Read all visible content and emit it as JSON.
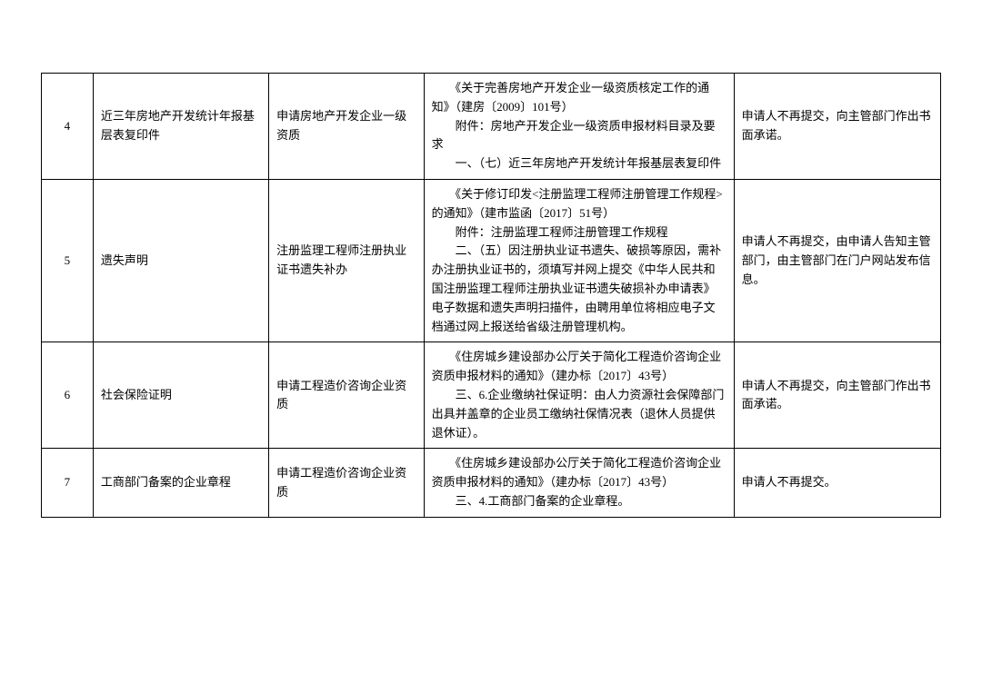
{
  "table": {
    "rows": [
      {
        "num": "4",
        "name": "近三年房地产开发统计年报基层表复印件",
        "scope": "申请房地产开发企业一级资质",
        "basis_lines": [
          "　　《关于完善房地产开发企业一级资质核定工作的通知》（建房〔2009〕101号）",
          "　　附件：房地产开发企业一级资质申报材料目录及要求",
          "　　一、（七）近三年房地产开发统计年报基层表复印件"
        ],
        "action": "申请人不再提交，向主管部门作出书面承诺。"
      },
      {
        "num": "5",
        "name": "遗失声明",
        "scope": "注册监理工程师注册执业证书遗失补办",
        "basis_lines": [
          "　　《关于修订印发<注册监理工程师注册管理工作规程>的通知》（建市监函〔2017〕51号）",
          "　　附件：注册监理工程师注册管理工作规程",
          "　　二、（五）因注册执业证书遗失、破损等原因，需补办注册执业证书的，须填写并网上提交《中华人民共和国注册监理工程师注册执业证书遗失破损补办申请表》电子数据和遗失声明扫描件，由聘用单位将相应电子文档通过网上报送给省级注册管理机构。"
        ],
        "action": "申请人不再提交，由申请人告知主管部门，由主管部门在门户网站发布信息。"
      },
      {
        "num": "6",
        "name": "社会保险证明",
        "scope": "申请工程造价咨询企业资质",
        "basis_lines": [
          "　　《住房城乡建设部办公厅关于简化工程造价咨询企业资质申报材料的通知》（建办标〔2017〕43号）",
          "　　三、6.企业缴纳社保证明：由人力资源社会保障部门出具并盖章的企业员工缴纳社保情况表（退休人员提供退休证）。"
        ],
        "action": "申请人不再提交，向主管部门作出书面承诺。"
      },
      {
        "num": "7",
        "name": "工商部门备案的企业章程",
        "scope": "申请工程造价咨询企业资质",
        "basis_lines": [
          "　　《住房城乡建设部办公厅关于简化工程造价咨询企业资质申报材料的通知》（建办标〔2017〕43号）",
          "　　三、4.工商部门备案的企业章程。"
        ],
        "action": "申请人不再提交。"
      }
    ]
  },
  "styling": {
    "border_color": "#000000",
    "background_color": "#ffffff",
    "text_color": "#000000",
    "font_size": 13,
    "line_height": 1.6,
    "col_widths": {
      "num": "5%",
      "name": "17%",
      "scope": "15%",
      "basis": "30%",
      "action": "20%"
    }
  }
}
